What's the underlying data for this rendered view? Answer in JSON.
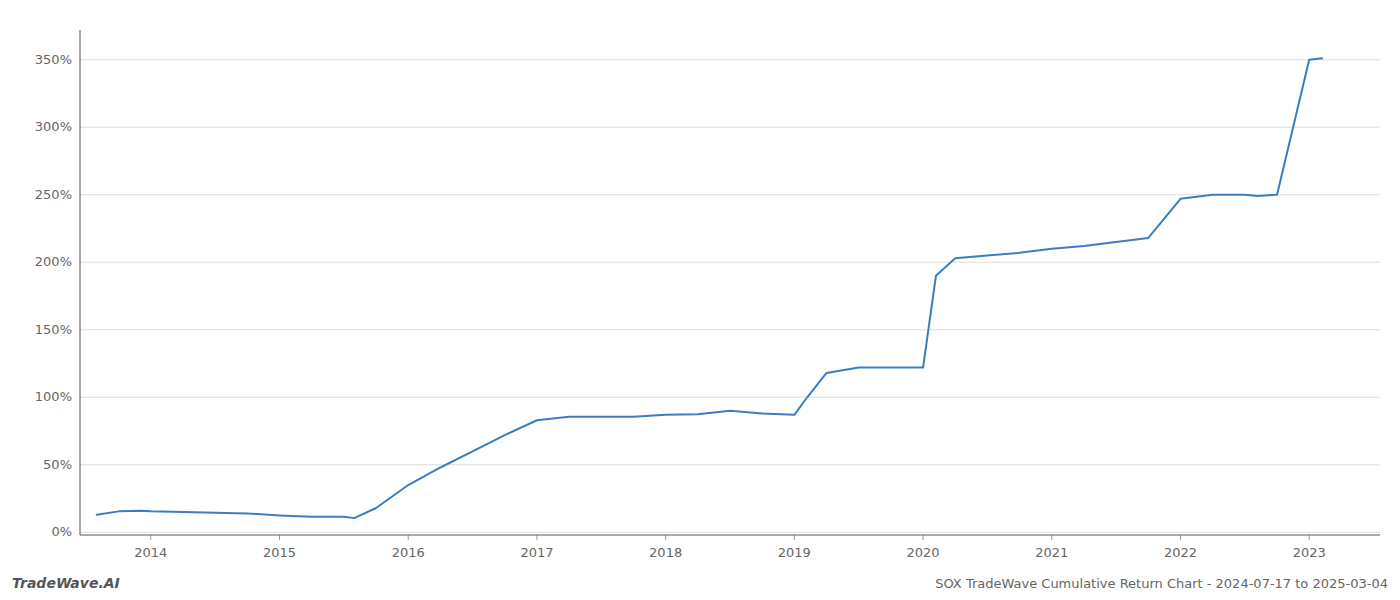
{
  "chart_data": {
    "type": "line",
    "title": "SOX TradeWave Cumulative Return Chart - 2024-07-17 to 2025-03-04",
    "annotations": [
      "TradeWave.AI"
    ],
    "color": "#3a7ebf",
    "grid": "y",
    "x": [
      2013.58,
      2013.75,
      2013.92,
      2014.0,
      2014.25,
      2014.5,
      2014.75,
      2015.0,
      2015.25,
      2015.5,
      2015.58,
      2015.75,
      2016.0,
      2016.25,
      2016.5,
      2016.75,
      2017.0,
      2017.25,
      2017.5,
      2017.75,
      2018.0,
      2018.25,
      2018.5,
      2018.75,
      2019.0,
      2019.1,
      2019.25,
      2019.5,
      2019.75,
      2020.0,
      2020.1,
      2020.25,
      2020.5,
      2020.75,
      2021.0,
      2021.25,
      2021.5,
      2021.75,
      2022.0,
      2022.25,
      2022.5,
      2022.6,
      2022.75,
      2023.0,
      2023.1
    ],
    "values": [
      0.13,
      0.155,
      0.16,
      0.155,
      0.15,
      0.145,
      0.14,
      0.125,
      0.115,
      0.115,
      0.105,
      0.18,
      0.35,
      0.48,
      0.6,
      0.72,
      0.83,
      0.855,
      0.855,
      0.855,
      0.87,
      0.875,
      0.9,
      0.88,
      0.87,
      1.0,
      1.18,
      1.22,
      1.22,
      1.22,
      1.9,
      2.03,
      2.05,
      2.07,
      2.1,
      2.12,
      2.15,
      2.18,
      2.47,
      2.5,
      2.5,
      2.49,
      2.5,
      3.5,
      3.51
    ],
    "xlim": [
      2013.45,
      2023.55
    ],
    "xticks": [
      2014,
      2015,
      2016,
      2017,
      2018,
      2019,
      2020,
      2021,
      2022,
      2023
    ],
    "ylim": [
      -0.02,
      3.72
    ],
    "yticks": [
      {
        "value": 0.0,
        "label": "0%"
      },
      {
        "value": 0.5,
        "label": "50%"
      },
      {
        "value": 1.0,
        "label": "100%"
      },
      {
        "value": 1.5,
        "label": "150%"
      },
      {
        "value": 2.0,
        "label": "200%"
      },
      {
        "value": 2.5,
        "label": "250%"
      },
      {
        "value": 3.0,
        "label": "300%"
      },
      {
        "value": 3.5,
        "label": "350%"
      }
    ]
  }
}
